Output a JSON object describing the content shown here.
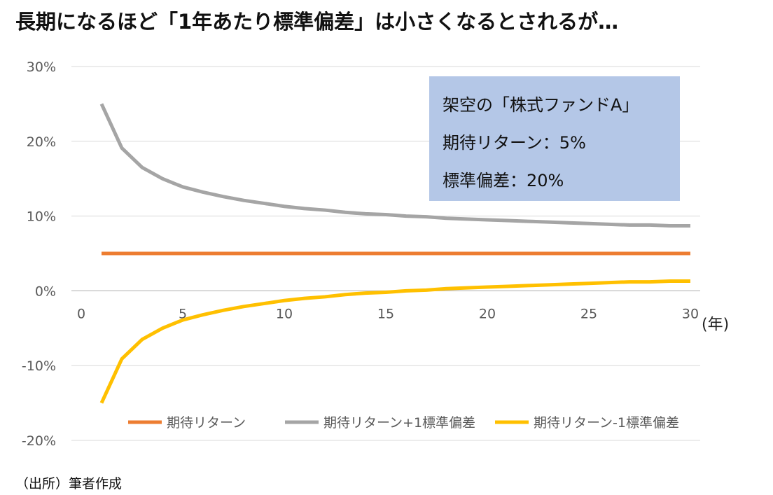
{
  "title": "長期になるほど「1年あたり標準偏差」は小さくなるとされるが…",
  "source": "（出所）筆者作成",
  "note_box": {
    "lines": [
      "架空の「株式ファンドA」",
      "期待リターン：5%",
      "標準偏差：20%"
    ]
  },
  "colors": {
    "expected": "#ed7d31",
    "plus": "#a5a5a5",
    "minus": "#ffc000",
    "grid": "#d9d9d9",
    "note_bg": "#b4c7e7"
  },
  "chart_data": {
    "type": "line",
    "x": [
      1,
      2,
      3,
      4,
      5,
      6,
      7,
      8,
      9,
      10,
      11,
      12,
      13,
      14,
      15,
      16,
      17,
      18,
      19,
      20,
      21,
      22,
      23,
      24,
      25,
      26,
      27,
      28,
      29,
      30
    ],
    "xlim": [
      0,
      30
    ],
    "x_ticks": [
      "0",
      "5",
      "10",
      "15",
      "20",
      "25",
      "30"
    ],
    "x_tick_values": [
      0,
      5,
      10,
      15,
      20,
      25,
      30
    ],
    "x_unit": "(年)",
    "ylim": [
      -20,
      30
    ],
    "y_ticks": [
      "30%",
      "20%",
      "10%",
      "0%",
      "-10%",
      "-20%"
    ],
    "y_tick_values": [
      30,
      20,
      10,
      0,
      -10,
      -20
    ],
    "grid": true,
    "legend_position": "bottom",
    "series": [
      {
        "name": "期待リターン",
        "color": "#ed7d31",
        "values": [
          5,
          5,
          5,
          5,
          5,
          5,
          5,
          5,
          5,
          5,
          5,
          5,
          5,
          5,
          5,
          5,
          5,
          5,
          5,
          5,
          5,
          5,
          5,
          5,
          5,
          5,
          5,
          5,
          5,
          5
        ]
      },
      {
        "name": "期待リターン+1標準偏差",
        "color": "#a5a5a5",
        "values": [
          25.0,
          19.1,
          16.5,
          15.0,
          13.9,
          13.2,
          12.6,
          12.1,
          11.7,
          11.3,
          11.0,
          10.8,
          10.5,
          10.3,
          10.2,
          10.0,
          9.9,
          9.7,
          9.6,
          9.5,
          9.4,
          9.3,
          9.2,
          9.1,
          9.0,
          8.9,
          8.8,
          8.8,
          8.7,
          8.7
        ]
      },
      {
        "name": "期待リターン-1標準偏差",
        "color": "#ffc000",
        "values": [
          -15.0,
          -9.1,
          -6.5,
          -5.0,
          -3.9,
          -3.2,
          -2.6,
          -2.1,
          -1.7,
          -1.3,
          -1.0,
          -0.8,
          -0.5,
          -0.3,
          -0.2,
          0.0,
          0.1,
          0.3,
          0.4,
          0.5,
          0.6,
          0.7,
          0.8,
          0.9,
          1.0,
          1.1,
          1.2,
          1.2,
          1.3,
          1.3
        ]
      }
    ]
  }
}
